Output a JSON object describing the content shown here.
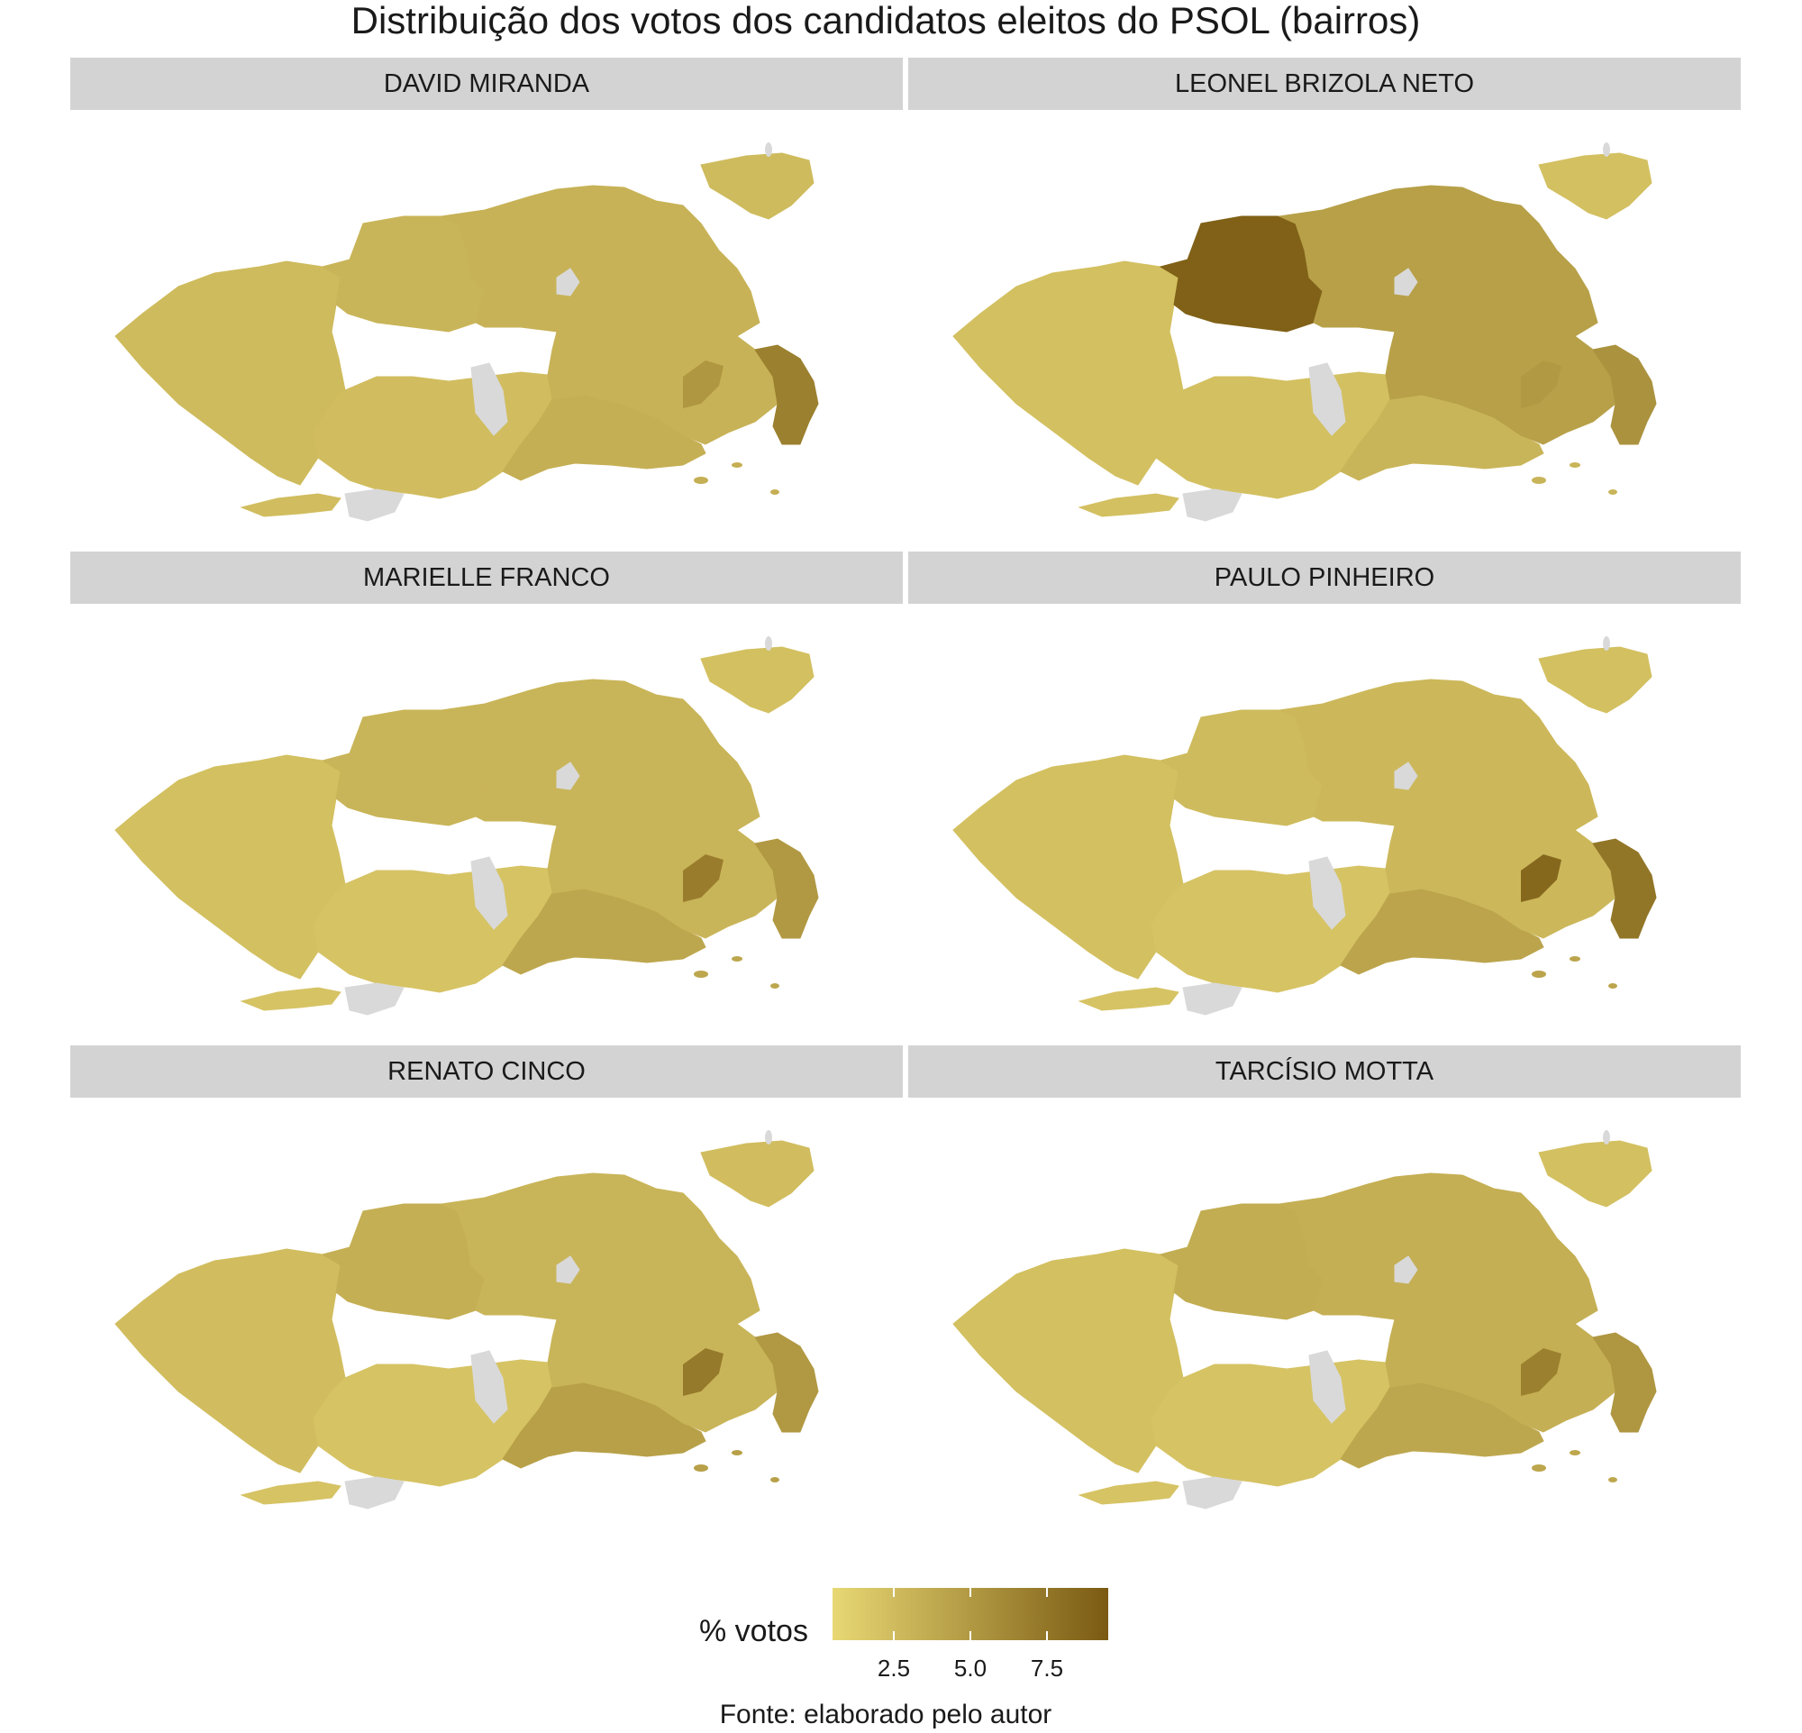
{
  "title": "Distribuição dos votos dos candidatos eleitos do PSOL (bairros)",
  "panels": [
    {
      "name": "DAVID MIRANDA",
      "hot": {
        "west": 2.6,
        "northwest": 3.0,
        "north": 3.2,
        "southwest": 2.4,
        "south_coast": 3.4,
        "east": 5.2,
        "east_coast": 6.8
      }
    },
    {
      "name": "LEONEL BRIZOLA NETO",
      "hot": {
        "west": 2.2,
        "northwest": 9.0,
        "north": 4.5,
        "southwest": 2.2,
        "south_coast": 3.0,
        "east": 5.0,
        "east_coast": 5.5
      }
    },
    {
      "name": "MARIELLE FRANCO",
      "hot": {
        "west": 2.2,
        "northwest": 3.0,
        "north": 3.0,
        "southwest": 2.0,
        "south_coast": 4.0,
        "east": 7.0,
        "east_coast": 5.0
      }
    },
    {
      "name": "PAULO PINHEIRO",
      "hot": {
        "west": 2.2,
        "northwest": 2.6,
        "north": 2.8,
        "southwest": 2.0,
        "south_coast": 4.2,
        "east": 8.5,
        "east_coast": 7.5
      }
    },
    {
      "name": "RENATO CINCO",
      "hot": {
        "west": 2.4,
        "northwest": 3.4,
        "north": 3.0,
        "southwest": 2.0,
        "south_coast": 4.5,
        "east": 7.2,
        "east_coast": 5.0
      }
    },
    {
      "name": "TARCÍSIO MOTTA",
      "hot": {
        "west": 2.2,
        "northwest": 3.6,
        "north": 3.4,
        "southwest": 2.0,
        "south_coast": 4.0,
        "east": 6.8,
        "east_coast": 5.2
      }
    }
  ],
  "legend": {
    "title": "% votos",
    "ticks": [
      2.5,
      5.0,
      7.5
    ],
    "tick_labels": [
      "2.5",
      "5.0",
      "7.5"
    ],
    "range": [
      0.5,
      9.5
    ],
    "low_color": "#e8d874",
    "high_color": "#7a5a12",
    "na_color": "#d9d9d9"
  },
  "caption": "Fonte: elaborado pelo autor"
}
